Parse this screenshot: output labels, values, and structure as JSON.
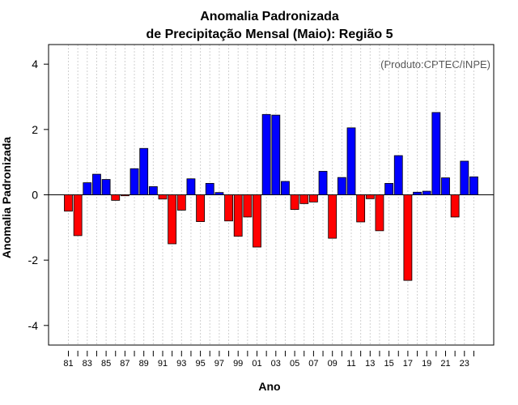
{
  "chart_data": {
    "type": "bar",
    "title_line1": "Anomalia Padronizada",
    "title_line2": "de Precipitação Mensal (Maio): Região 5",
    "xlabel": "Ano",
    "ylabel": "Anomalia Padronizada",
    "source_note": "(Produto:CPTEC/INPE)",
    "ylim": [
      -4.6,
      4.6
    ],
    "yticks": [
      -4,
      -2,
      0,
      2,
      4
    ],
    "categories": [
      "81",
      "82",
      "83",
      "84",
      "85",
      "86",
      "87",
      "88",
      "89",
      "90",
      "91",
      "92",
      "93",
      "94",
      "95",
      "96",
      "97",
      "98",
      "99",
      "00",
      "01",
      "02",
      "03",
      "04",
      "05",
      "06",
      "07",
      "08",
      "09",
      "10",
      "11",
      "12",
      "13",
      "14",
      "15",
      "16",
      "17",
      "18",
      "19",
      "20",
      "21",
      "22",
      "23",
      "24"
    ],
    "x_tick_labels": [
      "81",
      "83",
      "85",
      "87",
      "89",
      "91",
      "93",
      "95",
      "97",
      "99",
      "01",
      "03",
      "05",
      "07",
      "09",
      "11",
      "13",
      "15",
      "17",
      "19",
      "21",
      "23"
    ],
    "values": [
      -0.5,
      -1.25,
      0.37,
      0.63,
      0.47,
      -0.17,
      -0.03,
      0.8,
      1.42,
      0.25,
      -0.13,
      -1.5,
      -0.47,
      0.49,
      -0.82,
      0.35,
      0.07,
      -0.8,
      -1.27,
      -0.68,
      -1.6,
      2.46,
      2.44,
      0.41,
      -0.45,
      -0.27,
      -0.22,
      0.72,
      -1.33,
      0.53,
      2.05,
      -0.83,
      -0.12,
      -1.1,
      0.35,
      1.2,
      -2.62,
      0.08,
      0.11,
      2.52,
      0.52,
      -0.68,
      1.03,
      0.55
    ],
    "positive_color": "#0000ff",
    "negative_color": "#ff0000",
    "grid": true
  }
}
